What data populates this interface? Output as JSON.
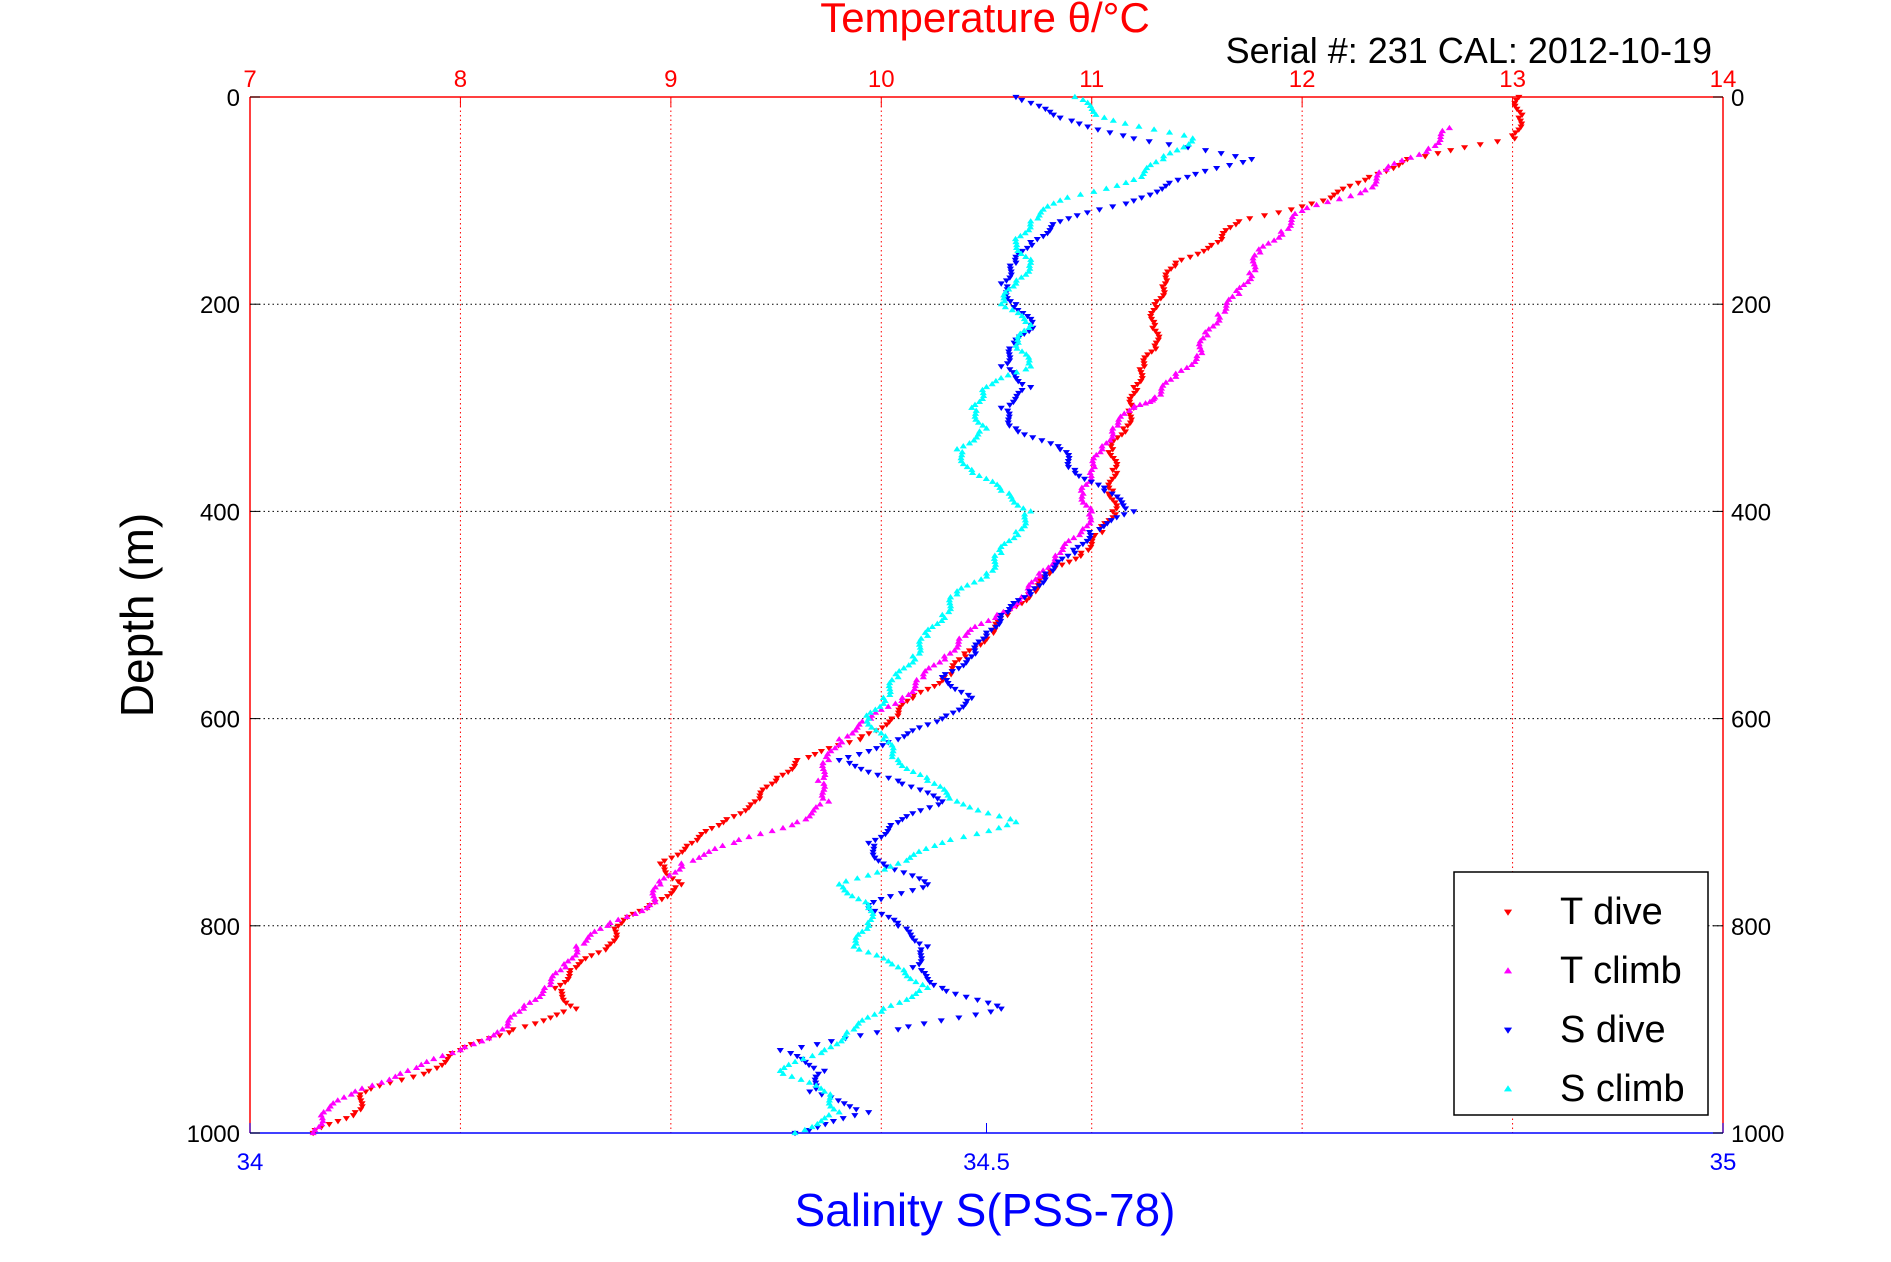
{
  "chart_data": {
    "type": "scatter",
    "top_title": "Temperature θ/°C",
    "subtitle": "Serial #: 231  CAL: 2012-10-19",
    "xlabel_bottom": "Salinity S(PSS-78)",
    "ylabel": "Depth (m)",
    "x_temperature": {
      "range": [
        7,
        14
      ],
      "ticks": [
        "7",
        "8",
        "9",
        "10",
        "11",
        "12",
        "13",
        "14"
      ],
      "color": "#ff0000"
    },
    "x_salinity": {
      "range": [
        34,
        35
      ],
      "ticks": [
        "34",
        "34.5",
        "35"
      ],
      "color": "#0000ff"
    },
    "y_depth": {
      "range": [
        0,
        1000
      ],
      "reversed": true,
      "ticks": [
        "0",
        "200",
        "400",
        "600",
        "800",
        "1000"
      ]
    },
    "grid": true,
    "legend_position": "bottom-right",
    "series": [
      {
        "name": "T dive",
        "axis": "temperature",
        "marker": "triangle-down",
        "color": "#ff0000",
        "points": [
          [
            13.03,
            0
          ],
          [
            13.03,
            20
          ],
          [
            13.01,
            40
          ],
          [
            12.5,
            60
          ],
          [
            12.3,
            80
          ],
          [
            12.1,
            100
          ],
          [
            11.7,
            120
          ],
          [
            11.6,
            140
          ],
          [
            11.4,
            160
          ],
          [
            11.35,
            180
          ],
          [
            11.3,
            200
          ],
          [
            11.3,
            220
          ],
          [
            11.3,
            240
          ],
          [
            11.25,
            260
          ],
          [
            11.2,
            280
          ],
          [
            11.2,
            300
          ],
          [
            11.15,
            320
          ],
          [
            11.1,
            340
          ],
          [
            11.1,
            360
          ],
          [
            11.1,
            380
          ],
          [
            11.1,
            400
          ],
          [
            11.05,
            420
          ],
          [
            10.95,
            440
          ],
          [
            10.8,
            460
          ],
          [
            10.7,
            480
          ],
          [
            10.6,
            500
          ],
          [
            10.5,
            520
          ],
          [
            10.4,
            540
          ],
          [
            10.3,
            560
          ],
          [
            10.15,
            580
          ],
          [
            10.05,
            600
          ],
          [
            9.9,
            620
          ],
          [
            9.6,
            640
          ],
          [
            9.5,
            660
          ],
          [
            9.4,
            680
          ],
          [
            9.25,
            700
          ],
          [
            9.1,
            720
          ],
          [
            8.95,
            740
          ],
          [
            9.05,
            760
          ],
          [
            8.9,
            780
          ],
          [
            8.75,
            800
          ],
          [
            8.7,
            820
          ],
          [
            8.55,
            840
          ],
          [
            8.45,
            860
          ],
          [
            8.55,
            880
          ],
          [
            8.25,
            900
          ],
          [
            8.0,
            920
          ],
          [
            7.85,
            940
          ],
          [
            7.55,
            960
          ],
          [
            7.5,
            980
          ],
          [
            7.3,
            1000
          ]
        ]
      },
      {
        "name": "T climb",
        "axis": "temperature",
        "marker": "triangle-up",
        "color": "#ff00ff",
        "points": [
          [
            12.7,
            30
          ],
          [
            12.6,
            50
          ],
          [
            12.4,
            70
          ],
          [
            12.3,
            90
          ],
          [
            12.0,
            110
          ],
          [
            11.9,
            130
          ],
          [
            11.8,
            150
          ],
          [
            11.75,
            170
          ],
          [
            11.7,
            190
          ],
          [
            11.6,
            210
          ],
          [
            11.55,
            230
          ],
          [
            11.5,
            250
          ],
          [
            11.4,
            270
          ],
          [
            11.3,
            290
          ],
          [
            11.2,
            300
          ],
          [
            11.1,
            320
          ],
          [
            11.05,
            340
          ],
          [
            11.0,
            360
          ],
          [
            10.95,
            380
          ],
          [
            11.0,
            400
          ],
          [
            10.95,
            420
          ],
          [
            10.85,
            440
          ],
          [
            10.75,
            460
          ],
          [
            10.7,
            480
          ],
          [
            10.55,
            500
          ],
          [
            10.4,
            520
          ],
          [
            10.3,
            540
          ],
          [
            10.2,
            560
          ],
          [
            10.1,
            580
          ],
          [
            9.95,
            600
          ],
          [
            9.8,
            620
          ],
          [
            9.75,
            640
          ],
          [
            9.7,
            660
          ],
          [
            9.75,
            680
          ],
          [
            9.6,
            700
          ],
          [
            9.3,
            720
          ],
          [
            9.05,
            740
          ],
          [
            8.95,
            760
          ],
          [
            8.9,
            780
          ],
          [
            8.7,
            800
          ],
          [
            8.55,
            820
          ],
          [
            8.5,
            840
          ],
          [
            8.4,
            860
          ],
          [
            8.3,
            880
          ],
          [
            8.2,
            900
          ],
          [
            8.0,
            920
          ],
          [
            7.75,
            940
          ],
          [
            7.5,
            960
          ],
          [
            7.35,
            980
          ],
          [
            7.3,
            1000
          ]
        ]
      },
      {
        "name": "S dive",
        "axis": "salinity",
        "marker": "triangle-down",
        "color": "#0000ff",
        "points": [
          [
            34.52,
            0
          ],
          [
            34.55,
            20
          ],
          [
            34.6,
            40
          ],
          [
            34.68,
            60
          ],
          [
            34.63,
            80
          ],
          [
            34.6,
            100
          ],
          [
            34.55,
            120
          ],
          [
            34.53,
            140
          ],
          [
            34.52,
            160
          ],
          [
            34.51,
            180
          ],
          [
            34.52,
            200
          ],
          [
            34.53,
            220
          ],
          [
            34.52,
            240
          ],
          [
            34.51,
            260
          ],
          [
            34.53,
            280
          ],
          [
            34.51,
            300
          ],
          [
            34.52,
            320
          ],
          [
            34.55,
            340
          ],
          [
            34.56,
            360
          ],
          [
            34.58,
            380
          ],
          [
            34.6,
            400
          ],
          [
            34.57,
            420
          ],
          [
            34.56,
            440
          ],
          [
            34.54,
            460
          ],
          [
            34.53,
            480
          ],
          [
            34.51,
            500
          ],
          [
            34.5,
            520
          ],
          [
            34.49,
            540
          ],
          [
            34.47,
            560
          ],
          [
            34.49,
            580
          ],
          [
            34.47,
            600
          ],
          [
            34.44,
            620
          ],
          [
            34.4,
            640
          ],
          [
            34.44,
            660
          ],
          [
            34.47,
            680
          ],
          [
            34.44,
            700
          ],
          [
            34.42,
            720
          ],
          [
            34.43,
            740
          ],
          [
            34.46,
            760
          ],
          [
            34.42,
            780
          ],
          [
            34.44,
            800
          ],
          [
            34.46,
            820
          ],
          [
            34.45,
            840
          ],
          [
            34.47,
            860
          ],
          [
            34.51,
            880
          ],
          [
            34.44,
            900
          ],
          [
            34.36,
            920
          ],
          [
            34.39,
            940
          ],
          [
            34.38,
            960
          ],
          [
            34.42,
            980
          ],
          [
            34.37,
            1000
          ]
        ]
      },
      {
        "name": "S climb",
        "axis": "salinity",
        "marker": "triangle-up",
        "color": "#00ffff",
        "points": [
          [
            34.56,
            0
          ],
          [
            34.58,
            20
          ],
          [
            34.64,
            40
          ],
          [
            34.62,
            60
          ],
          [
            34.6,
            80
          ],
          [
            34.55,
            100
          ],
          [
            34.53,
            120
          ],
          [
            34.52,
            140
          ],
          [
            34.53,
            160
          ],
          [
            34.52,
            180
          ],
          [
            34.51,
            200
          ],
          [
            34.53,
            220
          ],
          [
            34.52,
            240
          ],
          [
            34.53,
            260
          ],
          [
            34.5,
            280
          ],
          [
            34.49,
            300
          ],
          [
            34.5,
            320
          ],
          [
            34.48,
            340
          ],
          [
            34.49,
            360
          ],
          [
            34.51,
            380
          ],
          [
            34.53,
            400
          ],
          [
            34.52,
            420
          ],
          [
            34.51,
            440
          ],
          [
            34.5,
            460
          ],
          [
            34.48,
            480
          ],
          [
            34.47,
            500
          ],
          [
            34.46,
            520
          ],
          [
            34.45,
            540
          ],
          [
            34.44,
            560
          ],
          [
            34.43,
            580
          ],
          [
            34.42,
            600
          ],
          [
            34.43,
            620
          ],
          [
            34.44,
            640
          ],
          [
            34.46,
            660
          ],
          [
            34.48,
            680
          ],
          [
            34.52,
            700
          ],
          [
            34.47,
            720
          ],
          [
            34.44,
            740
          ],
          [
            34.4,
            760
          ],
          [
            34.42,
            780
          ],
          [
            34.42,
            800
          ],
          [
            34.41,
            820
          ],
          [
            34.44,
            840
          ],
          [
            34.46,
            860
          ],
          [
            34.43,
            880
          ],
          [
            34.41,
            900
          ],
          [
            34.39,
            920
          ],
          [
            34.36,
            940
          ],
          [
            34.39,
            960
          ],
          [
            34.4,
            980
          ],
          [
            34.37,
            1000
          ]
        ]
      }
    ]
  }
}
